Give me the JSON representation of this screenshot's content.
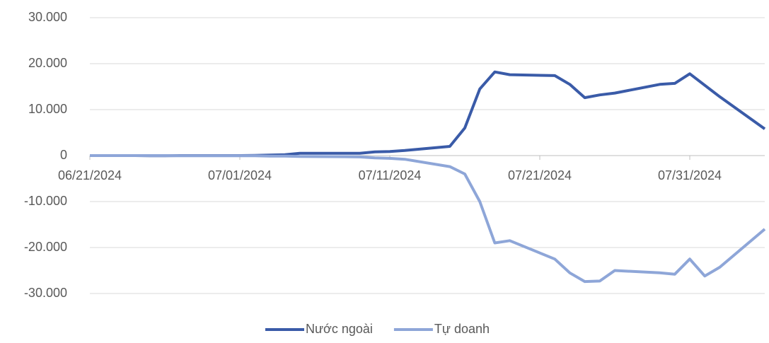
{
  "chart_data": {
    "type": "line",
    "x": [
      "06/21/2024",
      "06/24/2024",
      "06/25/2024",
      "06/26/2024",
      "06/27/2024",
      "06/28/2024",
      "07/01/2024",
      "07/02/2024",
      "07/03/2024",
      "07/04/2024",
      "07/05/2024",
      "07/08/2024",
      "07/09/2024",
      "07/10/2024",
      "07/11/2024",
      "07/12/2024",
      "07/15/2024",
      "07/16/2024",
      "07/17/2024",
      "07/18/2024",
      "07/19/2024",
      "07/22/2024",
      "07/23/2024",
      "07/24/2024",
      "07/25/2024",
      "07/26/2024",
      "07/29/2024",
      "07/30/2024",
      "07/31/2024",
      "08/01/2024",
      "08/02/2024",
      "08/05/2024"
    ],
    "series": [
      {
        "name": "Nước ngoài",
        "color": "#3a5ba8",
        "values": [
          0,
          0,
          -50,
          -50,
          0,
          0,
          0,
          50,
          100,
          200,
          500,
          500,
          500,
          800,
          900,
          1100,
          2000,
          6000,
          14500,
          18200,
          17600,
          17400,
          15500,
          12600,
          13200,
          13600,
          15500,
          15700,
          17800,
          15300,
          12800,
          5800
        ]
      },
      {
        "name": "Tự doanh",
        "color": "#8ea6d8",
        "values": [
          0,
          0,
          0,
          0,
          -50,
          -50,
          -50,
          -50,
          -100,
          -100,
          -200,
          -250,
          -300,
          -500,
          -600,
          -800,
          -2400,
          -4000,
          -10000,
          -19000,
          -18500,
          -22500,
          -25500,
          -27400,
          -27300,
          -25000,
          -25500,
          -25800,
          -22500,
          -26200,
          -24300,
          -16000
        ]
      }
    ],
    "xlim": [
      "06/21/2024",
      "08/05/2024"
    ],
    "xticks": [
      "06/21/2024",
      "07/01/2024",
      "07/11/2024",
      "07/21/2024",
      "07/31/2024"
    ],
    "ylim": [
      -30000,
      30000
    ],
    "yticks": [
      {
        "value": -30000,
        "label": "-30.000"
      },
      {
        "value": -20000,
        "label": "-20.000"
      },
      {
        "value": -10000,
        "label": "-10.000"
      },
      {
        "value": 0,
        "label": "0"
      },
      {
        "value": 10000,
        "label": "10.000"
      },
      {
        "value": 20000,
        "label": "20.000"
      },
      {
        "value": 30000,
        "label": "30.000"
      }
    ],
    "grid": true,
    "legend": "bottom"
  }
}
